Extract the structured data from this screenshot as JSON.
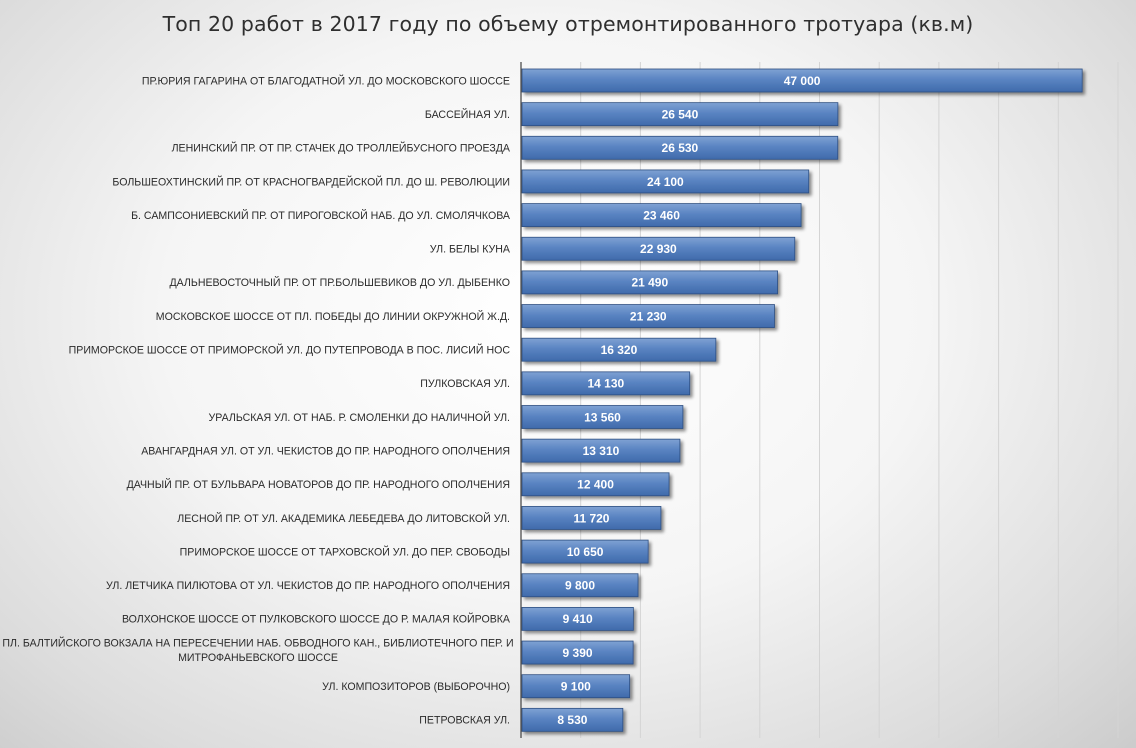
{
  "chart_data": {
    "type": "bar",
    "orientation": "horizontal",
    "title": "Топ 20 работ в 2017 году по объему отремонтированного тротуара (кв.м)",
    "xlim": [
      0,
      50000
    ],
    "grid": true,
    "colors": {
      "bar_top": "#7fa2d3",
      "bar_mid": "#5a84c2",
      "bar_bottom": "#3f6aab",
      "bar_stroke": "#2e4f82",
      "grid": "#d4d4d4",
      "axis": "#404040"
    },
    "categories": [
      "ПР.ЮРИЯ ГАГАРИНА ОТ БЛАГОДАТНОЙ УЛ. ДО МОСКОВСКОГО ШОССЕ",
      "БАССЕЙНАЯ УЛ.",
      "ЛЕНИНСКИЙ ПР. ОТ ПР. СТАЧЕК ДО ТРОЛЛЕЙБУСНОГО ПРОЕЗДА",
      "БОЛЬШЕОХТИНСКИЙ ПР. ОТ КРАСНОГВАРДЕЙСКОЙ ПЛ. ДО Ш. РЕВОЛЮЦИИ",
      "Б. САМПСОНИЕВСКИЙ ПР. ОТ ПИРОГОВСКОЙ НАБ. ДО УЛ. СМОЛЯЧКОВА",
      "УЛ. БЕЛЫ КУНА",
      "ДАЛЬНЕВОСТОЧНЫЙ ПР. ОТ ПР.БОЛЬШЕВИКОВ ДО УЛ. ДЫБЕНКО",
      "МОСКОВСКОЕ ШОССЕ ОТ ПЛ. ПОБЕДЫ ДО ЛИНИИ ОКРУЖНОЙ Ж.Д.",
      "ПРИМОРСКОЕ ШОССЕ ОТ ПРИМОРСКОЙ УЛ. ДО ПУТЕПРОВОДА В ПОС. ЛИСИЙ НОС",
      "ПУЛКОВСКАЯ УЛ.",
      "УРАЛЬСКАЯ УЛ. ОТ НАБ. Р. СМОЛЕНКИ ДО НАЛИЧНОЙ УЛ.",
      "АВАНГАРДНАЯ УЛ. ОТ УЛ. ЧЕКИСТОВ ДО ПР. НАРОДНОГО ОПОЛЧЕНИЯ",
      "ДАЧНЫЙ ПР. ОТ БУЛЬВАРА НОВАТОРОВ ДО ПР. НАРОДНОГО ОПОЛЧЕНИЯ",
      "ЛЕСНОЙ ПР. ОТ УЛ. АКАДЕМИКА ЛЕБЕДЕВА ДО ЛИТОВСКОЙ УЛ.",
      "ПРИМОРСКОЕ ШОССЕ ОТ ТАРХОВСКОЙ УЛ. ДО ПЕР. СВОБОДЫ",
      "УЛ. ЛЕТЧИКА ПИЛЮТОВА ОТ УЛ. ЧЕКИСТОВ ДО ПР. НАРОДНОГО ОПОЛЧЕНИЯ",
      "ВОЛХОНСКОЕ ШОССЕ ОТ ПУЛКОВСКОГО ШОССЕ ДО Р. МАЛАЯ КОЙРОВКА",
      "ПЛ. БАЛТИЙСКОГО ВОКЗАЛА НА ПЕРЕСЕЧЕНИИ НАБ. ОБВОДНОГО КАН., БИБЛИОТЕЧНОГО ПЕР. И МИТРОФАНЬЕВСКОГО ШОССЕ",
      "УЛ. КОМПОЗИТОРОВ (ВЫБОРОЧНО)",
      "ПЕТРОВСКАЯ УЛ."
    ],
    "values": [
      47000,
      26540,
      26530,
      24100,
      23460,
      22930,
      21490,
      21230,
      16320,
      14130,
      13560,
      13310,
      12400,
      11720,
      10650,
      9800,
      9410,
      9390,
      9100,
      8530
    ],
    "value_labels": [
      "47 000",
      "26 540",
      "26 530",
      "24 100",
      "23 460",
      "22 930",
      "21 490",
      "21 230",
      "16 320",
      "14 130",
      "13 560",
      "13 310",
      "12 400",
      "11 720",
      "10 650",
      "9 800",
      "9 410",
      "9 390",
      "9 100",
      "8 530"
    ]
  }
}
